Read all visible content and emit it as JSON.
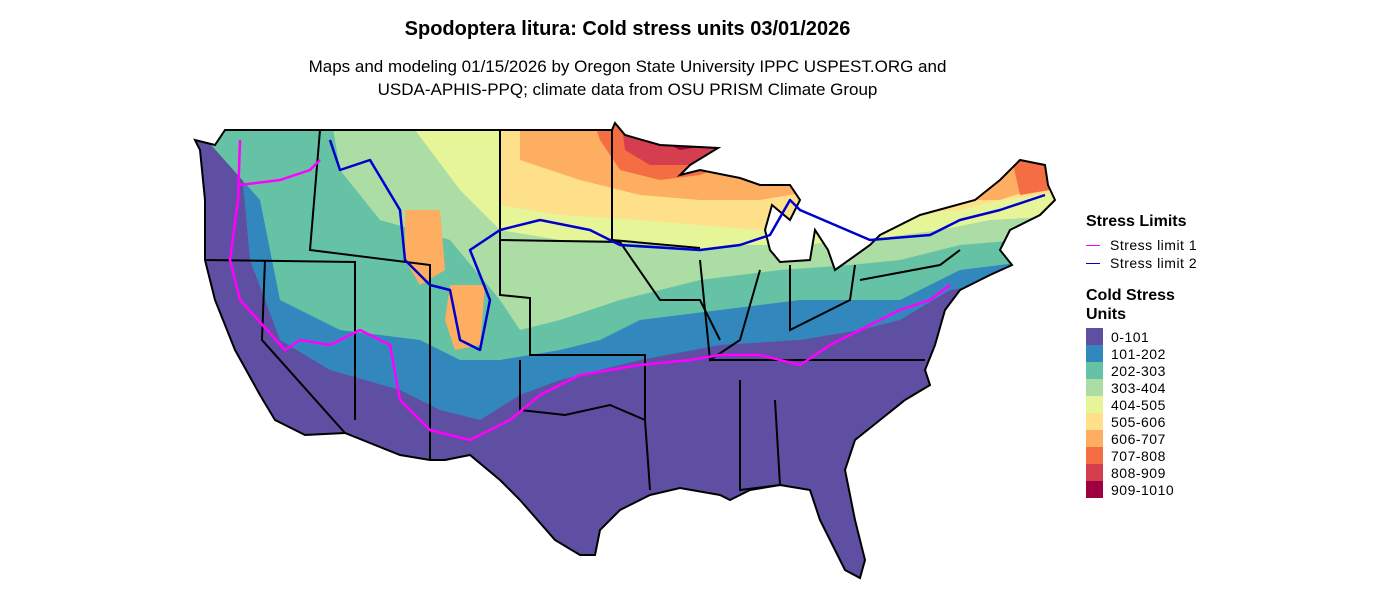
{
  "title": "Spodoptera litura: Cold stress units 03/01/2026",
  "subtitle_line1": "Maps and modeling 01/15/2026 by Oregon State University IPPC USPEST.ORG and",
  "subtitle_line2": "USDA-APHIS-PPQ; climate data from OSU PRISM Climate Group",
  "legend": {
    "limits_title": "Stress Limits",
    "limits": [
      {
        "label": "Stress limit 1",
        "color": "#FF00FF"
      },
      {
        "label": "Stress limit 2",
        "color": "#0000CD"
      }
    ],
    "units_title_1": "Cold Stress",
    "units_title_2": "Units",
    "bins": [
      {
        "label": "0-101",
        "color": "#5E4FA2"
      },
      {
        "label": "101-202",
        "color": "#3288BD"
      },
      {
        "label": "202-303",
        "color": "#66C2A5"
      },
      {
        "label": "303-404",
        "color": "#ABDDA4"
      },
      {
        "label": "404-505",
        "color": "#E6F598"
      },
      {
        "label": "505-606",
        "color": "#FEE08B"
      },
      {
        "label": "606-707",
        "color": "#FDAE61"
      },
      {
        "label": "707-808",
        "color": "#F46D43"
      },
      {
        "label": "808-909",
        "color": "#D53E4F"
      },
      {
        "label": "909-1010",
        "color": "#9E0142"
      }
    ]
  }
}
